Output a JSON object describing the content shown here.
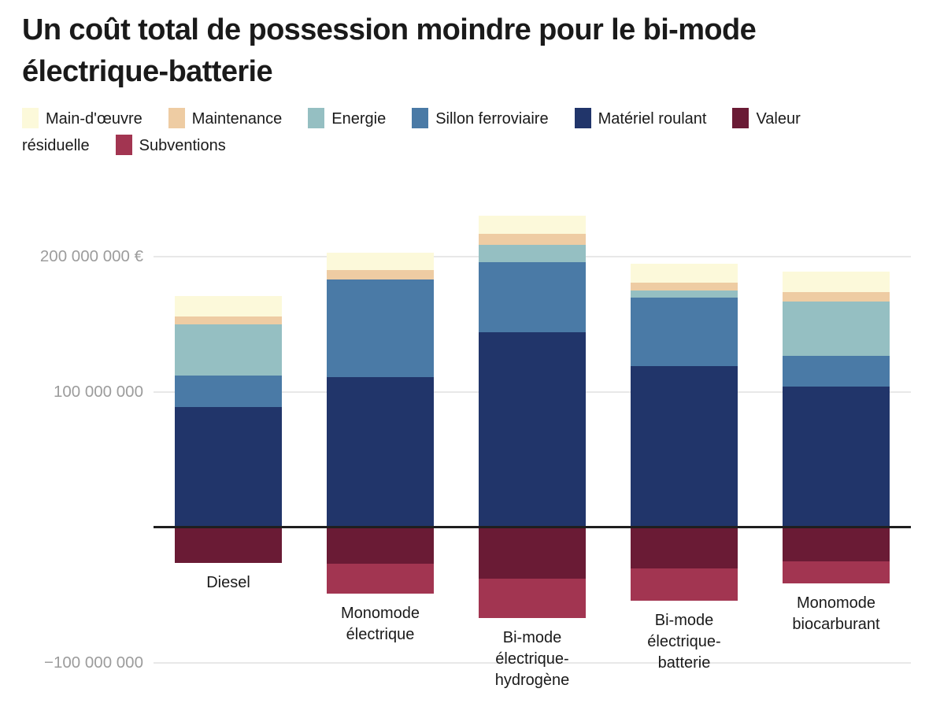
{
  "title": {
    "text": "Un coût total de possession moindre pour le bi-mode électrique-batterie"
  },
  "colors": {
    "background": "#ffffff",
    "grid": "#E8E8E8",
    "zero_line": "#1F1F1F",
    "axis_label": "#9C9C9C",
    "text": "#1A1A1A"
  },
  "chart_data": {
    "type": "bar",
    "stacked": true,
    "value_unit": "EUR",
    "values_in": "millions",
    "baseline": 0,
    "ylim": [
      -100,
      240
    ],
    "grid": "horizontal",
    "legend_position": "top",
    "y_ticks": [
      {
        "value": 200,
        "label": "200 000 000 €"
      },
      {
        "value": 100,
        "label": "100 000 000"
      },
      {
        "value": -100,
        "label": "−100 000 000"
      }
    ],
    "categories": [
      {
        "id": "diesel",
        "label": "Diesel",
        "label_lines": [
          "Diesel"
        ]
      },
      {
        "id": "monomode-electrique",
        "label": "Monomode électrique",
        "label_lines": [
          "Monomode",
          "électrique"
        ]
      },
      {
        "id": "bimode-electrique-hydrogene",
        "label": "Bi-mode électrique-hydrogène",
        "label_lines": [
          "Bi-mode",
          "électrique-",
          "hydrogène"
        ]
      },
      {
        "id": "bimode-electrique-batterie",
        "label": "Bi-mode électrique-batterie",
        "label_lines": [
          "Bi-mode",
          "électrique-",
          "batterie"
        ]
      },
      {
        "id": "monomode-biocarburant",
        "label": "Monomode biocarburant",
        "label_lines": [
          "Monomode",
          "biocarburant"
        ]
      }
    ],
    "series": [
      {
        "key": "main-doeuvre",
        "name": "Main-d'œuvre",
        "color": "#FCF9DA",
        "values": [
          15,
          13,
          13,
          14,
          15
        ]
      },
      {
        "key": "maintenance",
        "name": "Maintenance",
        "color": "#EECCA3",
        "values": [
          6,
          7,
          8,
          6,
          7
        ]
      },
      {
        "key": "energie",
        "name": "Energie",
        "color": "#95BFC2",
        "values": [
          38,
          0,
          13,
          5,
          40
        ]
      },
      {
        "key": "sillon-ferroviaire",
        "name": "Sillon ferroviaire",
        "color": "#4A7AA6",
        "values": [
          23,
          72,
          52,
          51,
          23
        ]
      },
      {
        "key": "materiel-roulant",
        "name": "Matériel roulant",
        "color": "#21356A",
        "values": [
          89,
          111,
          144,
          119,
          104
        ]
      },
      {
        "key": "valeur-residuelle",
        "name": "Valeur résiduelle",
        "color": "#6A1B35",
        "values": [
          -26,
          -27,
          -38,
          -30,
          -25
        ]
      },
      {
        "key": "subventions",
        "name": "Subventions",
        "color": "#A23551",
        "values": [
          0,
          -22,
          -29,
          -24,
          -16
        ]
      }
    ]
  }
}
